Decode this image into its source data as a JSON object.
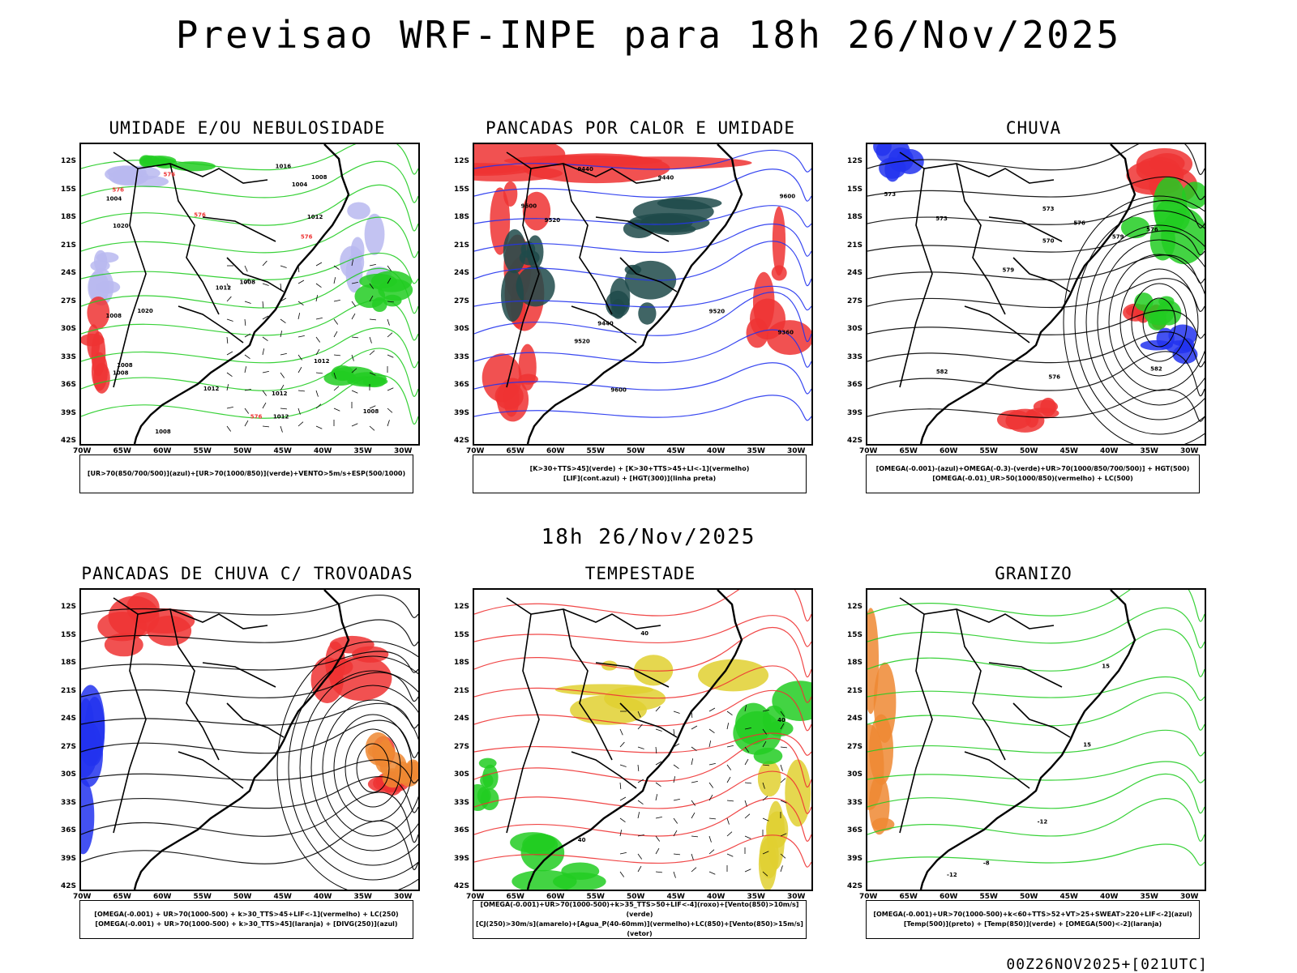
{
  "header": {
    "title": "Previsao WRF-INPE  para 18h 26/Nov/2025"
  },
  "mid_date": "18h 26/Nov/2025",
  "footer": "00Z26NOV2025+[021UTC]",
  "axes": {
    "lat_labels": [
      "12S",
      "15S",
      "18S",
      "21S",
      "24S",
      "27S",
      "30S",
      "33S",
      "36S",
      "39S",
      "42S"
    ],
    "lon_labels": [
      "70W",
      "65W",
      "60W",
      "55W",
      "50W",
      "45W",
      "40W",
      "35W",
      "30W"
    ]
  },
  "colors": {
    "black": "#000000",
    "green": "#22cc22",
    "red": "#ee3333",
    "blue": "#2233ee",
    "lavender": "#b8b8f0",
    "darkteal": "#1f4a4a",
    "yellow": "#e0d030",
    "orange": "#ee8833"
  },
  "panels": [
    {
      "id": "umidade",
      "title": "UMIDADE E/OU NEBULOSIDADE",
      "legend": [
        "[UR>70(850/700/500)](azul)+[UR>70(1000/850)](verde)+VENTO>5m/s+ESP(500/1000)"
      ],
      "labels": [
        "1008",
        "1008",
        "1008",
        "1012",
        "1012",
        "1004",
        "1008",
        "1008",
        "1012",
        "1012",
        "1016",
        "1004",
        "1008",
        "1012",
        "1020",
        "1020",
        "1012",
        "1008",
        "576",
        "576",
        "576",
        "576",
        "576"
      ]
    },
    {
      "id": "pancadas_calor",
      "title": "PANCADAS POR CALOR E UMIDADE",
      "legend": [
        "[K>30+TTS>45](verde) + [K>30+TTS>45+LI<-1](vermelho)",
        "[LIF](cont.azul) + [HGT(300)](linha preta)"
      ],
      "labels": [
        "9600",
        "9600",
        "9600",
        "9520",
        "9520",
        "9520",
        "9440",
        "9440",
        "9440",
        "9360"
      ]
    },
    {
      "id": "chuva",
      "title": "CHUVA",
      "legend": [
        "[OMEGA(-0.001)-(azul)+OMEGA(-0.3)-(verde)+UR>70(1000/850/700/500)] + HGT(500)",
        "[OMEGA(-0.01)_UR>50(1000/850)(vermelho) + LC(500)"
      ],
      "labels": [
        "582",
        "582",
        "579",
        "576",
        "576",
        "573",
        "573",
        "570",
        "579",
        "576",
        "573"
      ]
    },
    {
      "id": "pancadas_trovoadas",
      "title": "PANCADAS DE CHUVA C/ TROVOADAS",
      "legend": [
        "[OMEGA(-0.001) + UR>70(1000-500) + k>30_TTS>45+LIF<-1](vermelho) + LC(250)",
        "[OMEGA(-0.001) + UR>70(1000-500) + k>30_TTS>45](laranja) + [DIVG(250)](azul)"
      ],
      "labels": []
    },
    {
      "id": "tempestade",
      "title": "TEMPESTADE",
      "legend": [
        "[OMEGA(-0.001)+UR>70(1000-500)+k>35_TTS>50+LIF<-4](roxo)+[Vento(850)>10m/s](verde)",
        "[CJ(250)>30m/s](amarelo)+[Agua_P(40-60mm)](vermelho)+LC(850)+[Vento(850)>15m/s](vetor)"
      ],
      "labels": [
        "40",
        "40",
        "40"
      ]
    },
    {
      "id": "granizo",
      "title": "GRANIZO",
      "legend": [
        "[OMEGA(-0.001)+UR>70(1000-500)+k<60+TTS>52+VT>25+SWEAT>220+LIF<-2](azul)",
        "[Temp(500)](preto) + [Temp(850)](verde) + [OMEGA(500)<-2](laranja)"
      ],
      "labels": [
        "-12",
        "-12",
        "-8",
        "15",
        "15"
      ]
    }
  ]
}
